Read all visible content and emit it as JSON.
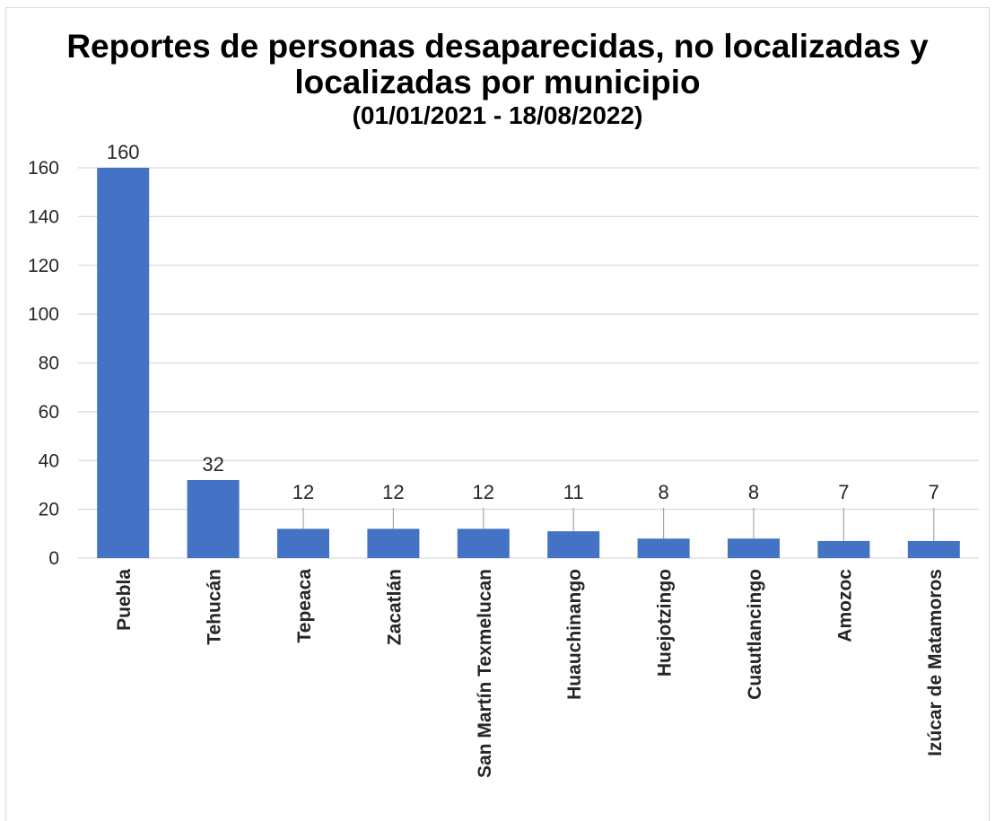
{
  "chart_data": {
    "type": "bar",
    "title": "Reportes de personas desaparecidas, no localizadas y localizadas por municipio",
    "subtitle": "(01/01/2021 - 18/08/2022)",
    "categories": [
      "Puebla",
      "Tehucán",
      "Tepeaca",
      "Zacatlán",
      "San Martín Texmelucan",
      "Huauchinango",
      "Huejotzingo",
      "Cuautlancingo",
      "Amozoc",
      "Izúcar de Matamoros"
    ],
    "values": [
      160,
      32,
      12,
      12,
      12,
      11,
      8,
      8,
      7,
      7
    ],
    "data_labels": [
      "160",
      "32",
      "12",
      "12",
      "12",
      "11",
      "8",
      "8",
      "7",
      "7"
    ],
    "y_ticks": [
      "0",
      "20",
      "40",
      "60",
      "80",
      "100",
      "120",
      "140",
      "160"
    ],
    "ylim": [
      0,
      160
    ],
    "xlabel": "",
    "ylabel": "",
    "grid": true,
    "legend": "none",
    "colors": {
      "bar": "#4472c4",
      "grid": "#d9d9d9",
      "leader": "#a6a6a6",
      "text": "#262626"
    }
  }
}
